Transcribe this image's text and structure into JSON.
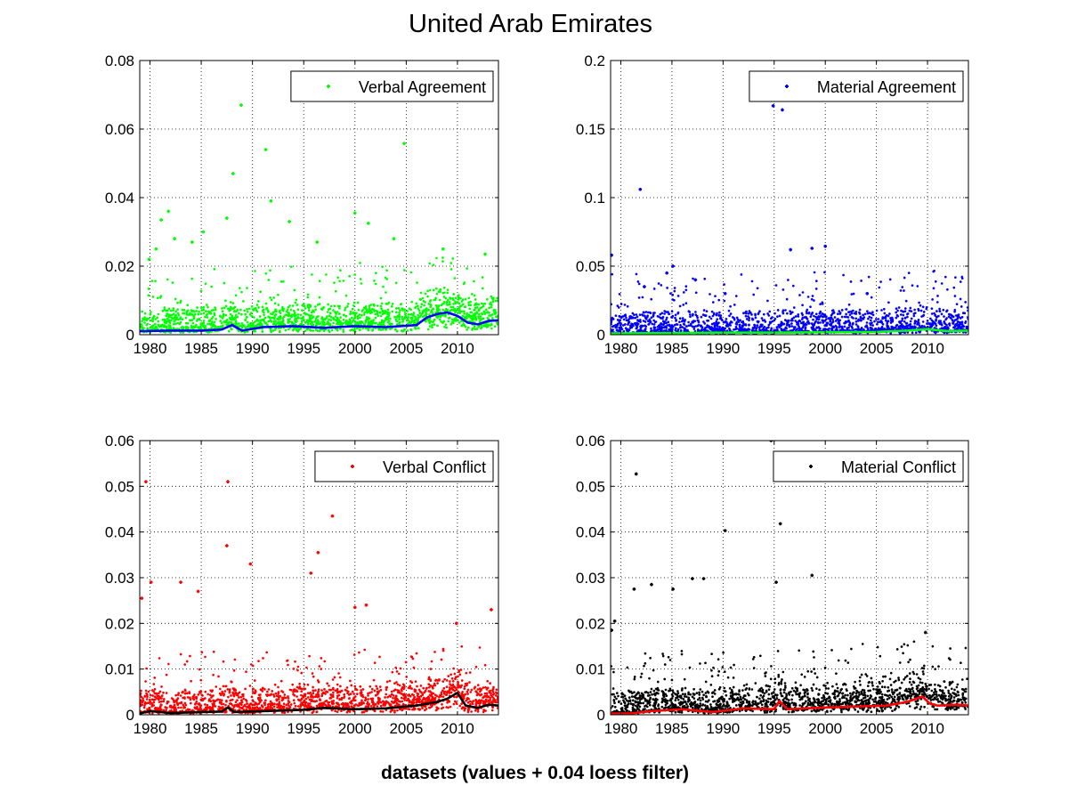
{
  "figure": {
    "title": "United Arab Emirates",
    "footer": "datasets (values + 0.04 loess filter)"
  },
  "chart_data": [
    {
      "type": "scatter",
      "xlim": [
        1979,
        2014
      ],
      "ylim": [
        0,
        0.08
      ],
      "xticks": [
        1980,
        1985,
        1990,
        1995,
        2000,
        2005,
        2010
      ],
      "yticks": [
        0,
        0.02,
        0.04,
        0.06,
        0.08
      ],
      "ytick_labels": [
        "0",
        "0.02",
        "0.04",
        "0.06",
        "0.08"
      ],
      "grid": true,
      "legend_position": "top-right",
      "point_color": "#00ff00",
      "line_color": "#0000ff",
      "series": [
        {
          "name": "Verbal Agreement",
          "role": "points",
          "x": [
            1988.9,
            1991.3,
            2004.8,
            1988.1,
            1991.8,
            2000.0,
            1981.8,
            1993.6,
            1979.9,
            1980.6,
            1985.2,
            2003.8,
            2008.6,
            2012.7,
            1981.1,
            1982.4,
            1996.3,
            1984.1,
            2001.3,
            1987.5
          ],
          "y": [
            0.067,
            0.054,
            0.0558,
            0.047,
            0.039,
            0.0355,
            0.036,
            0.033,
            0.022,
            0.025,
            0.03,
            0.028,
            0.025,
            0.0235,
            0.0335,
            0.028,
            0.027,
            0.027,
            0.0325,
            0.034
          ]
        },
        {
          "name": "",
          "role": "trend",
          "x": [
            1979,
            1982,
            1985,
            1987,
            1988,
            1989,
            1991,
            1994,
            1997,
            2000,
            2003,
            2006,
            2007,
            2008,
            2009,
            2010,
            2011,
            2012,
            2013,
            2014
          ],
          "y": [
            0.001,
            0.0012,
            0.0012,
            0.0015,
            0.0028,
            0.0012,
            0.0022,
            0.0025,
            0.002,
            0.0025,
            0.0022,
            0.0028,
            0.005,
            0.006,
            0.0065,
            0.0055,
            0.0035,
            0.003,
            0.004,
            0.0042
          ]
        }
      ]
    },
    {
      "type": "scatter",
      "xlim": [
        1979,
        2014
      ],
      "ylim": [
        0,
        0.2
      ],
      "xticks": [
        1980,
        1985,
        1990,
        1995,
        2000,
        2005,
        2010
      ],
      "yticks": [
        0,
        0.05,
        0.1,
        0.15,
        0.2
      ],
      "ytick_labels": [
        "0",
        "0.05",
        "0.1",
        "0.15",
        "0.2"
      ],
      "grid": true,
      "legend_position": "top-right",
      "point_color": "#0000ff",
      "line_color": "#00ff00",
      "series": [
        {
          "name": "Material Agreement",
          "role": "points",
          "x": [
            1994.9,
            1995.8,
            1981.9,
            1979.1,
            1996.6,
            1998.7,
            2000.0,
            1984.5,
            1985.1,
            1987.3,
            1982.3,
            1990.2,
            2004.1
          ],
          "y": [
            0.167,
            0.164,
            0.106,
            0.058,
            0.062,
            0.063,
            0.0645,
            0.045,
            0.05,
            0.04,
            0.035,
            0.03,
            0.03
          ]
        },
        {
          "name": "",
          "role": "trend",
          "x": [
            1979,
            1985,
            1990,
            1995,
            2000,
            2005,
            2008,
            2010,
            2012,
            2014
          ],
          "y": [
            0.001,
            0.0012,
            0.0015,
            0.0015,
            0.0018,
            0.002,
            0.003,
            0.004,
            0.0025,
            0.003
          ]
        }
      ]
    },
    {
      "type": "scatter",
      "xlim": [
        1979,
        2014
      ],
      "ylim": [
        0,
        0.06
      ],
      "xticks": [
        1980,
        1985,
        1990,
        1995,
        2000,
        2005,
        2010
      ],
      "yticks": [
        0,
        0.01,
        0.02,
        0.03,
        0.04,
        0.05,
        0.06
      ],
      "ytick_labels": [
        "0",
        "0.01",
        "0.02",
        "0.03",
        "0.04",
        "0.05",
        "0.06"
      ],
      "grid": true,
      "legend_position": "top-right",
      "point_color": "#ff0000",
      "line_color": "#000000",
      "series": [
        {
          "name": "Verbal Conflict",
          "role": "points",
          "x": [
            1979.6,
            1987.6,
            1997.8,
            1996.4,
            1987.5,
            1989.8,
            1995.7,
            1983.0,
            1979.2,
            1980.1,
            1984.7,
            2000.0,
            2001.1,
            2013.3,
            2009.9
          ],
          "y": [
            0.051,
            0.051,
            0.0435,
            0.0355,
            0.037,
            0.033,
            0.031,
            0.029,
            0.0255,
            0.029,
            0.027,
            0.0235,
            0.024,
            0.023,
            0.02
          ]
        },
        {
          "name": "",
          "role": "trend",
          "x": [
            1979,
            1980,
            1982,
            1985,
            1987,
            1987.6,
            1988.2,
            1991,
            1995,
            1997,
            2000,
            2003,
            2006,
            2008,
            2009,
            2010,
            2010.8,
            2012,
            2013,
            2014
          ],
          "y": [
            0.0003,
            0.0008,
            0.0004,
            0.0006,
            0.0007,
            0.0016,
            0.0006,
            0.0008,
            0.0011,
            0.0015,
            0.0012,
            0.0014,
            0.002,
            0.0028,
            0.0035,
            0.0048,
            0.002,
            0.0015,
            0.0022,
            0.002
          ]
        }
      ]
    },
    {
      "type": "scatter",
      "xlim": [
        1979,
        2014
      ],
      "ylim": [
        0,
        0.06
      ],
      "xticks": [
        1980,
        1985,
        1990,
        1995,
        2000,
        2005,
        2010
      ],
      "yticks": [
        0,
        0.01,
        0.02,
        0.03,
        0.04,
        0.05,
        0.06
      ],
      "ytick_labels": [
        "0",
        "0.01",
        "0.02",
        "0.03",
        "0.04",
        "0.05",
        "0.06"
      ],
      "grid": true,
      "legend_position": "top-right",
      "point_color": "#000000",
      "line_color": "#ff0000",
      "series": [
        {
          "name": "Material Conflict",
          "role": "points",
          "x": [
            1994.7,
            1981.5,
            1995.6,
            1990.2,
            1998.7,
            1985.1,
            1987.0,
            1988.1,
            1979.4,
            1981.3,
            1983.0,
            1995.2,
            1979.1,
            2009.8
          ],
          "y": [
            0.06,
            0.0527,
            0.0418,
            0.0403,
            0.0305,
            0.0275,
            0.0298,
            0.0298,
            0.0205,
            0.0275,
            0.0285,
            0.029,
            0.0185,
            0.018
          ]
        },
        {
          "name": "",
          "role": "trend",
          "x": [
            1979,
            1981,
            1983,
            1986,
            1989,
            1992,
            1995,
            1995.5,
            1996.3,
            2000,
            2003,
            2006,
            2008,
            2009.5,
            2010.2,
            2011,
            2013,
            2014
          ],
          "y": [
            0.0003,
            0.0003,
            0.0008,
            0.0012,
            0.0006,
            0.0014,
            0.0012,
            0.003,
            0.0012,
            0.0016,
            0.0018,
            0.002,
            0.0028,
            0.004,
            0.0025,
            0.002,
            0.0022,
            0.002
          ]
        }
      ]
    }
  ]
}
